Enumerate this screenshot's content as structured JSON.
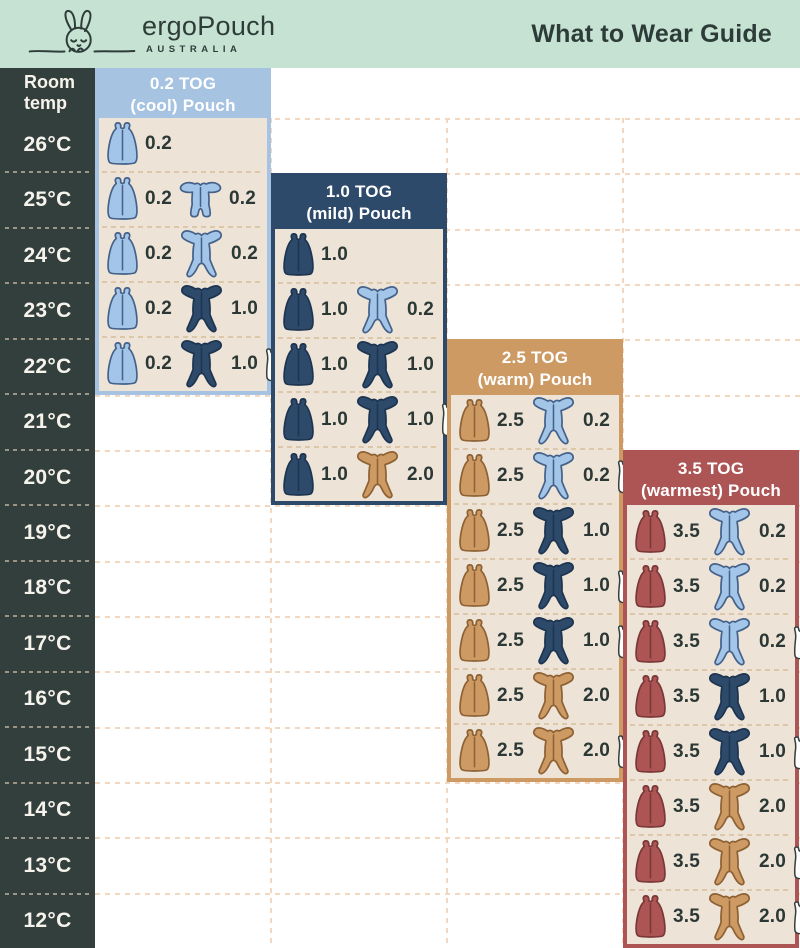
{
  "topbar": {
    "brand": "ergoPouch",
    "brand_sub": "AUSTRALIA",
    "title": "What to Wear Guide"
  },
  "temp_column": {
    "header_line1": "Room",
    "header_line2": "temp",
    "temps": [
      "26°C",
      "25°C",
      "24°C",
      "23°C",
      "22°C",
      "21°C",
      "20°C",
      "19°C",
      "18°C",
      "17°C",
      "16°C",
      "15°C",
      "14°C",
      "13°C",
      "12°C"
    ]
  },
  "colors": {
    "mint": "#c6e2d3",
    "ink": "#2f3d3a",
    "temp_bg": "#333f3d",
    "panel_body": "#ede3d7",
    "grid_line": "#f2d8c0",
    "row_line": "#dcc7a8",
    "garments": {
      "lightblue": {
        "fill": "#a3c5e8",
        "stroke": "#44618a"
      },
      "navy": {
        "fill": "#2e4a6a",
        "stroke": "#1d3450"
      },
      "tan": {
        "fill": "#cd9a64",
        "stroke": "#8d6133"
      },
      "red": {
        "fill": "#ad5454",
        "stroke": "#7a3737"
      },
      "white": {
        "fill": "#ffffff",
        "stroke": "#35413e"
      }
    }
  },
  "panels": [
    {
      "name": "panel-0-2-tog",
      "title_line1": "0.2 TOG",
      "title_line2": "(cool) Pouch",
      "header_bg": "#a6c3e1",
      "border": "#a6c3e1",
      "rows": [
        {
          "temp": "26°C",
          "items": [
            {
              "icon": "pouch",
              "color": "lightblue",
              "label": "0.2"
            }
          ]
        },
        {
          "temp": "25°C",
          "items": [
            {
              "icon": "pouch",
              "color": "lightblue",
              "label": "0.2"
            },
            {
              "icon": "romper-short",
              "color": "lightblue",
              "label": "0.2"
            }
          ]
        },
        {
          "temp": "24°C",
          "items": [
            {
              "icon": "pouch",
              "color": "lightblue",
              "label": "0.2"
            },
            {
              "icon": "romper",
              "color": "lightblue",
              "label": "0.2"
            }
          ]
        },
        {
          "temp": "23°C",
          "items": [
            {
              "icon": "pouch",
              "color": "lightblue",
              "label": "0.2"
            },
            {
              "icon": "romper",
              "color": "navy",
              "label": "1.0"
            }
          ]
        },
        {
          "temp": "22°C",
          "items": [
            {
              "icon": "pouch",
              "color": "lightblue",
              "label": "0.2"
            },
            {
              "icon": "romper",
              "color": "navy",
              "label": "1.0"
            },
            {
              "icon": "singlet",
              "color": "white"
            }
          ]
        }
      ]
    },
    {
      "name": "panel-1-0-tog",
      "title_line1": "1.0 TOG",
      "title_line2": "(mild) Pouch",
      "header_bg": "#2e4a6a",
      "border": "#2e4a6a",
      "rows": [
        {
          "temp": "24°C",
          "items": [
            {
              "icon": "pouch",
              "color": "navy",
              "label": "1.0"
            }
          ]
        },
        {
          "temp": "23°C",
          "items": [
            {
              "icon": "pouch",
              "color": "navy",
              "label": "1.0"
            },
            {
              "icon": "romper",
              "color": "lightblue",
              "label": "0.2"
            }
          ]
        },
        {
          "temp": "22°C",
          "items": [
            {
              "icon": "pouch",
              "color": "navy",
              "label": "1.0"
            },
            {
              "icon": "romper",
              "color": "navy",
              "label": "1.0"
            }
          ]
        },
        {
          "temp": "21°C",
          "items": [
            {
              "icon": "pouch",
              "color": "navy",
              "label": "1.0"
            },
            {
              "icon": "romper",
              "color": "navy",
              "label": "1.0"
            },
            {
              "icon": "singlet",
              "color": "white"
            }
          ]
        },
        {
          "temp": "20°C",
          "items": [
            {
              "icon": "pouch",
              "color": "navy",
              "label": "1.0"
            },
            {
              "icon": "romper",
              "color": "tan",
              "label": "2.0"
            }
          ]
        }
      ]
    },
    {
      "name": "panel-2-5-tog",
      "title_line1": "2.5 TOG",
      "title_line2": "(warm) Pouch",
      "header_bg": "#cd9a64",
      "border": "#cd9a64",
      "rows": [
        {
          "temp": "21°C",
          "items": [
            {
              "icon": "pouch",
              "color": "tan",
              "label": "2.5"
            },
            {
              "icon": "romper",
              "color": "lightblue",
              "label": "0.2"
            }
          ]
        },
        {
          "temp": "20°C",
          "items": [
            {
              "icon": "pouch",
              "color": "tan",
              "label": "2.5"
            },
            {
              "icon": "romper",
              "color": "lightblue",
              "label": "0.2"
            },
            {
              "icon": "singlet",
              "color": "white"
            }
          ]
        },
        {
          "temp": "19°C",
          "items": [
            {
              "icon": "pouch",
              "color": "tan",
              "label": "2.5"
            },
            {
              "icon": "romper",
              "color": "navy",
              "label": "1.0"
            }
          ]
        },
        {
          "temp": "18°C",
          "items": [
            {
              "icon": "pouch",
              "color": "tan",
              "label": "2.5"
            },
            {
              "icon": "romper",
              "color": "navy",
              "label": "1.0"
            },
            {
              "icon": "singlet",
              "color": "white"
            }
          ]
        },
        {
          "temp": "17°C",
          "items": [
            {
              "icon": "pouch",
              "color": "tan",
              "label": "2.5"
            },
            {
              "icon": "romper",
              "color": "navy",
              "label": "1.0"
            },
            {
              "icon": "singlet",
              "color": "white"
            }
          ]
        },
        {
          "temp": "16°C",
          "items": [
            {
              "icon": "pouch",
              "color": "tan",
              "label": "2.5"
            },
            {
              "icon": "romper",
              "color": "tan",
              "label": "2.0"
            }
          ]
        },
        {
          "temp": "15°C",
          "items": [
            {
              "icon": "pouch",
              "color": "tan",
              "label": "2.5"
            },
            {
              "icon": "romper",
              "color": "tan",
              "label": "2.0"
            },
            {
              "icon": "singlet",
              "color": "white"
            }
          ]
        }
      ]
    },
    {
      "name": "panel-3-5-tog",
      "title_line1": "3.5 TOG",
      "title_line2": "(warmest) Pouch",
      "header_bg": "#ad5454",
      "border": "#ad5454",
      "rows": [
        {
          "temp": "19°C",
          "items": [
            {
              "icon": "pouch",
              "color": "red",
              "label": "3.5"
            },
            {
              "icon": "romper",
              "color": "lightblue",
              "label": "0.2"
            }
          ]
        },
        {
          "temp": "18°C",
          "items": [
            {
              "icon": "pouch",
              "color": "red",
              "label": "3.5"
            },
            {
              "icon": "romper",
              "color": "lightblue",
              "label": "0.2"
            }
          ]
        },
        {
          "temp": "17°C",
          "items": [
            {
              "icon": "pouch",
              "color": "red",
              "label": "3.5"
            },
            {
              "icon": "romper",
              "color": "lightblue",
              "label": "0.2"
            },
            {
              "icon": "singlet",
              "color": "white"
            }
          ]
        },
        {
          "temp": "16°C",
          "items": [
            {
              "icon": "pouch",
              "color": "red",
              "label": "3.5"
            },
            {
              "icon": "romper",
              "color": "navy",
              "label": "1.0"
            }
          ]
        },
        {
          "temp": "15°C",
          "items": [
            {
              "icon": "pouch",
              "color": "red",
              "label": "3.5"
            },
            {
              "icon": "romper",
              "color": "navy",
              "label": "1.0"
            },
            {
              "icon": "singlet",
              "color": "white"
            }
          ]
        },
        {
          "temp": "14°C",
          "items": [
            {
              "icon": "pouch",
              "color": "red",
              "label": "3.5"
            },
            {
              "icon": "romper",
              "color": "tan",
              "label": "2.0"
            }
          ]
        },
        {
          "temp": "13°C",
          "items": [
            {
              "icon": "pouch",
              "color": "red",
              "label": "3.5"
            },
            {
              "icon": "romper",
              "color": "tan",
              "label": "2.0"
            },
            {
              "icon": "singlet",
              "color": "white"
            }
          ]
        },
        {
          "temp": "12°C",
          "items": [
            {
              "icon": "pouch",
              "color": "red",
              "label": "3.5"
            },
            {
              "icon": "romper",
              "color": "tan",
              "label": "2.0"
            },
            {
              "icon": "singlet",
              "color": "white"
            }
          ]
        }
      ]
    }
  ],
  "chart_data": {
    "type": "table",
    "title": "What to Wear Guide",
    "row_header": "Room temp",
    "temperatures_c": [
      26,
      25,
      24,
      23,
      22,
      21,
      20,
      19,
      18,
      17,
      16,
      15,
      14,
      13,
      12
    ],
    "columns": [
      "0.2 TOG (cool) Pouch",
      "1.0 TOG (mild) Pouch",
      "2.5 TOG (warm) Pouch",
      "3.5 TOG (warmest) Pouch"
    ],
    "cells": {
      "0.2 TOG (cool) Pouch": [
        {
          "temp": 26,
          "outfit": "Pouch 0.2"
        },
        {
          "temp": 25,
          "outfit": "Pouch 0.2 + Romper 0.2 (short sleeve)"
        },
        {
          "temp": 24,
          "outfit": "Pouch 0.2 + Romper 0.2"
        },
        {
          "temp": 23,
          "outfit": "Pouch 0.2 + Romper 1.0"
        },
        {
          "temp": 22,
          "outfit": "Pouch 0.2 + Romper 1.0 + Singlet"
        }
      ],
      "1.0 TOG (mild) Pouch": [
        {
          "temp": 24,
          "outfit": "Pouch 1.0"
        },
        {
          "temp": 23,
          "outfit": "Pouch 1.0 + Romper 0.2"
        },
        {
          "temp": 22,
          "outfit": "Pouch 1.0 + Romper 1.0"
        },
        {
          "temp": 21,
          "outfit": "Pouch 1.0 + Romper 1.0 + Singlet"
        },
        {
          "temp": 20,
          "outfit": "Pouch 1.0 + Romper 2.0"
        }
      ],
      "2.5 TOG (warm) Pouch": [
        {
          "temp": 21,
          "outfit": "Pouch 2.5 + Romper 0.2"
        },
        {
          "temp": 20,
          "outfit": "Pouch 2.5 + Romper 0.2 + Singlet"
        },
        {
          "temp": 19,
          "outfit": "Pouch 2.5 + Romper 1.0"
        },
        {
          "temp": 18,
          "outfit": "Pouch 2.5 + Romper 1.0 + Singlet"
        },
        {
          "temp": 17,
          "outfit": "Pouch 2.5 + Romper 1.0 + Singlet"
        },
        {
          "temp": 16,
          "outfit": "Pouch 2.5 + Romper 2.0"
        },
        {
          "temp": 15,
          "outfit": "Pouch 2.5 + Romper 2.0 + Singlet"
        }
      ],
      "3.5 TOG (warmest) Pouch": [
        {
          "temp": 19,
          "outfit": "Pouch 3.5 + Romper 0.2"
        },
        {
          "temp": 18,
          "outfit": "Pouch 3.5 + Romper 0.2"
        },
        {
          "temp": 17,
          "outfit": "Pouch 3.5 + Romper 0.2 + Singlet"
        },
        {
          "temp": 16,
          "outfit": "Pouch 3.5 + Romper 1.0"
        },
        {
          "temp": 15,
          "outfit": "Pouch 3.5 + Romper 1.0 + Singlet"
        },
        {
          "temp": 14,
          "outfit": "Pouch 3.5 + Romper 2.0"
        },
        {
          "temp": 13,
          "outfit": "Pouch 3.5 + Romper 2.0 + Singlet"
        },
        {
          "temp": 12,
          "outfit": "Pouch 3.5 + Romper 2.0 + Singlet"
        }
      ]
    }
  }
}
